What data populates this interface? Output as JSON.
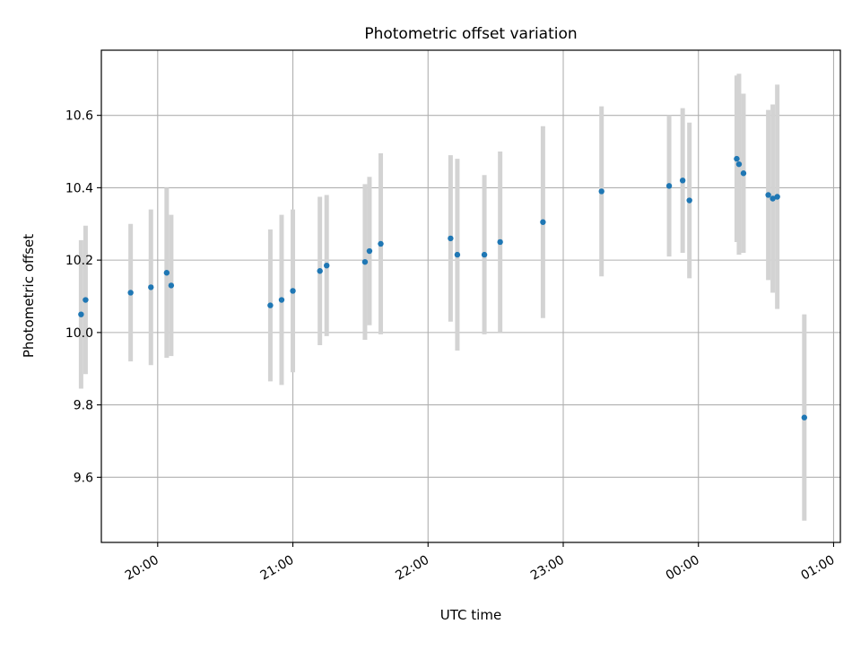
{
  "chart_data": {
    "type": "scatter",
    "title": "Photometric offset variation",
    "xlabel": "UTC time",
    "ylabel": "Photometric offset",
    "x_axis_type": "time",
    "xlim": [
      "19:35",
      "01:03"
    ],
    "ylim": [
      9.42,
      10.78
    ],
    "x_ticks": [
      {
        "t": "20:00",
        "label": "20:00"
      },
      {
        "t": "21:00",
        "label": "21:00"
      },
      {
        "t": "22:00",
        "label": "22:00"
      },
      {
        "t": "23:00",
        "label": "23:00"
      },
      {
        "t": "00:00",
        "label": "00:00"
      },
      {
        "t": "01:00",
        "label": "01:00"
      }
    ],
    "y_ticks": [
      9.6,
      9.8,
      10.0,
      10.2,
      10.4,
      10.6
    ],
    "y_tick_labels": [
      "9.6",
      "9.8",
      "10.0",
      "10.2",
      "10.4",
      "10.6"
    ],
    "grid": true,
    "marker_color": "#1f77b4",
    "errorbar_color": "#d3d3d3",
    "points": [
      {
        "t": "19:26",
        "y": 10.05,
        "err": 0.205
      },
      {
        "t": "19:28",
        "y": 10.09,
        "err": 0.205
      },
      {
        "t": "19:48",
        "y": 10.11,
        "err": 0.19
      },
      {
        "t": "19:57",
        "y": 10.125,
        "err": 0.215
      },
      {
        "t": "20:04",
        "y": 10.165,
        "err": 0.235
      },
      {
        "t": "20:06",
        "y": 10.13,
        "err": 0.195
      },
      {
        "t": "20:50",
        "y": 10.075,
        "err": 0.21
      },
      {
        "t": "20:55",
        "y": 10.09,
        "err": 0.235
      },
      {
        "t": "21:00",
        "y": 10.115,
        "err": 0.225
      },
      {
        "t": "21:12",
        "y": 10.17,
        "err": 0.205
      },
      {
        "t": "21:15",
        "y": 10.185,
        "err": 0.195
      },
      {
        "t": "21:32",
        "y": 10.195,
        "err": 0.215
      },
      {
        "t": "21:34",
        "y": 10.225,
        "err": 0.205
      },
      {
        "t": "21:39",
        "y": 10.245,
        "err": 0.25
      },
      {
        "t": "22:10",
        "y": 10.26,
        "err": 0.23
      },
      {
        "t": "22:13",
        "y": 10.215,
        "err": 0.265
      },
      {
        "t": "22:25",
        "y": 10.215,
        "err": 0.22
      },
      {
        "t": "22:32",
        "y": 10.25,
        "err": 0.25
      },
      {
        "t": "22:51",
        "y": 10.305,
        "err": 0.265
      },
      {
        "t": "23:17",
        "y": 10.39,
        "err": 0.235
      },
      {
        "t": "23:47",
        "y": 10.405,
        "err": 0.195
      },
      {
        "t": "23:53",
        "y": 10.42,
        "err": 0.2
      },
      {
        "t": "23:56",
        "y": 10.365,
        "err": 0.215
      },
      {
        "t": "00:17",
        "y": 10.48,
        "err": 0.23
      },
      {
        "t": "00:18",
        "y": 10.465,
        "err": 0.25
      },
      {
        "t": "00:20",
        "y": 10.44,
        "err": 0.22
      },
      {
        "t": "00:31",
        "y": 10.38,
        "err": 0.235
      },
      {
        "t": "00:33",
        "y": 10.37,
        "err": 0.26
      },
      {
        "t": "00:35",
        "y": 10.375,
        "err": 0.31
      },
      {
        "t": "00:47",
        "y": 9.765,
        "err": 0.285
      }
    ]
  }
}
